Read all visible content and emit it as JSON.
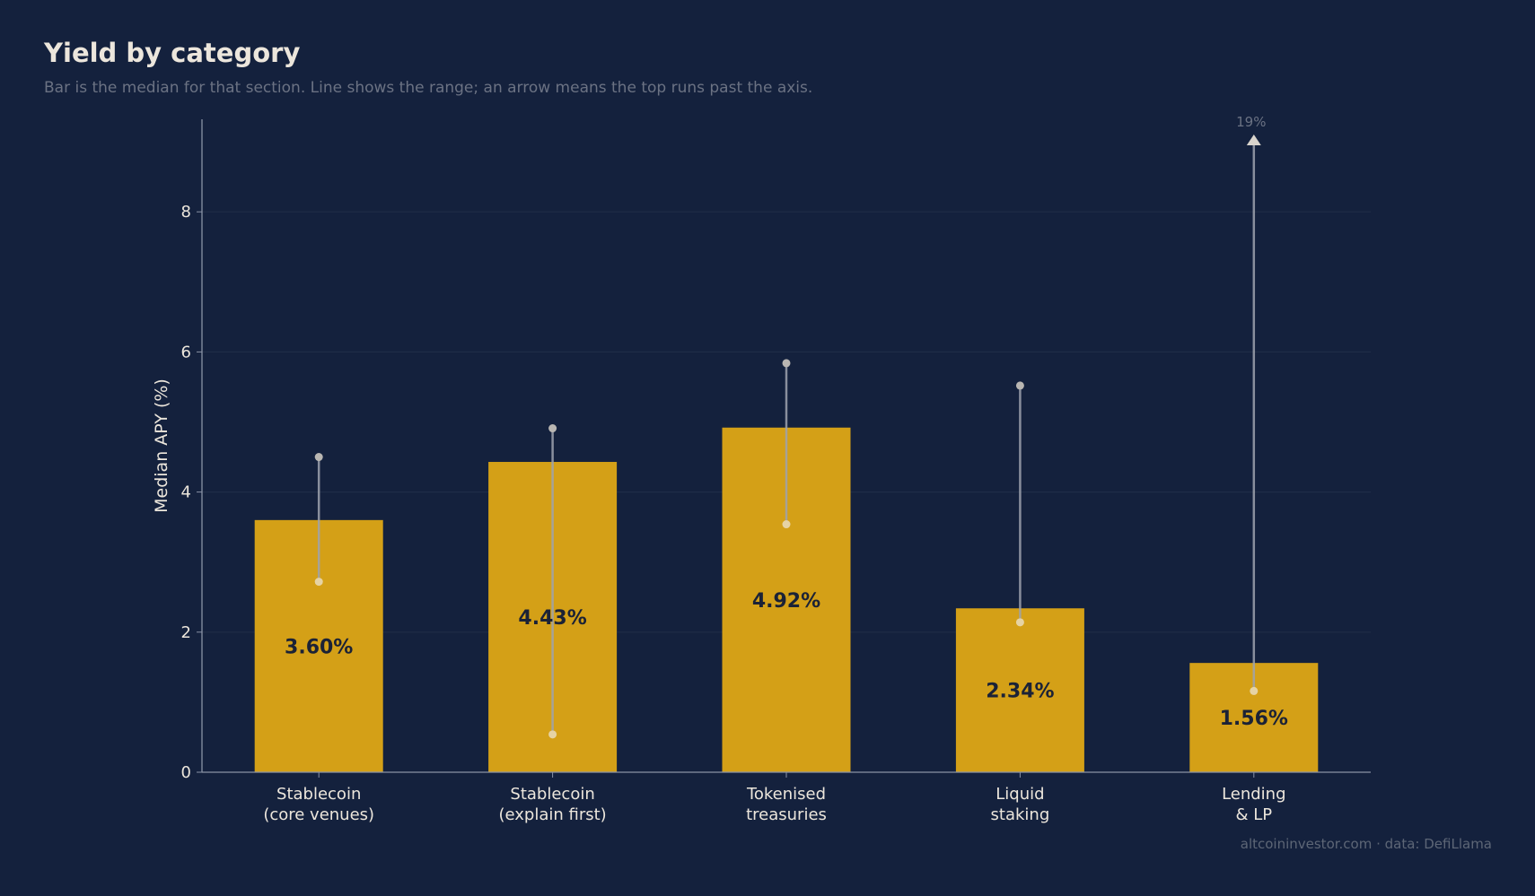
{
  "title": "Yield by category",
  "subtitle": "Bar is the median for that section. Line shows the range; an arrow means the top runs past the axis.",
  "credit": "altcoininvestor.com  ·  data: DefiLlama",
  "colors": {
    "background": "#14213d",
    "bar": "#d4a017",
    "bar_label": "#1b2236",
    "range_line": "#9ea3ae",
    "grid": "#1f2c47",
    "axis": "#8a93a6",
    "tick_text": "#ece6dc",
    "overflow_label": "#6b7283"
  },
  "chart_data": {
    "type": "bar",
    "title": "Yield by category",
    "subtitle": "Bar is the median for that section. Line shows the range; an arrow means the top runs past the axis.",
    "xlabel": "",
    "ylabel": "Median APY (%)",
    "ylim": [
      0,
      9.3
    ],
    "yticks": [
      0,
      2,
      4,
      6,
      8
    ],
    "grid": true,
    "categories": [
      [
        "Stablecoin",
        "(core venues)"
      ],
      [
        "Stablecoin",
        "(explain first)"
      ],
      [
        "Tokenised",
        "treasuries"
      ],
      [
        "Liquid",
        "staking"
      ],
      [
        "Lending",
        "& LP"
      ]
    ],
    "values": [
      3.6,
      4.43,
      4.92,
      2.34,
      1.56
    ],
    "value_labels": [
      "3.60%",
      "4.43%",
      "4.92%",
      "2.34%",
      "1.56%"
    ],
    "ranges": [
      {
        "low": 2.72,
        "high": 4.5
      },
      {
        "low": 0.54,
        "high": 4.91
      },
      {
        "low": 3.54,
        "high": 5.84
      },
      {
        "low": 2.14,
        "high": 5.52
      },
      {
        "low": 1.16,
        "high": 19,
        "overflow": true,
        "overflow_label": "19%"
      }
    ]
  }
}
